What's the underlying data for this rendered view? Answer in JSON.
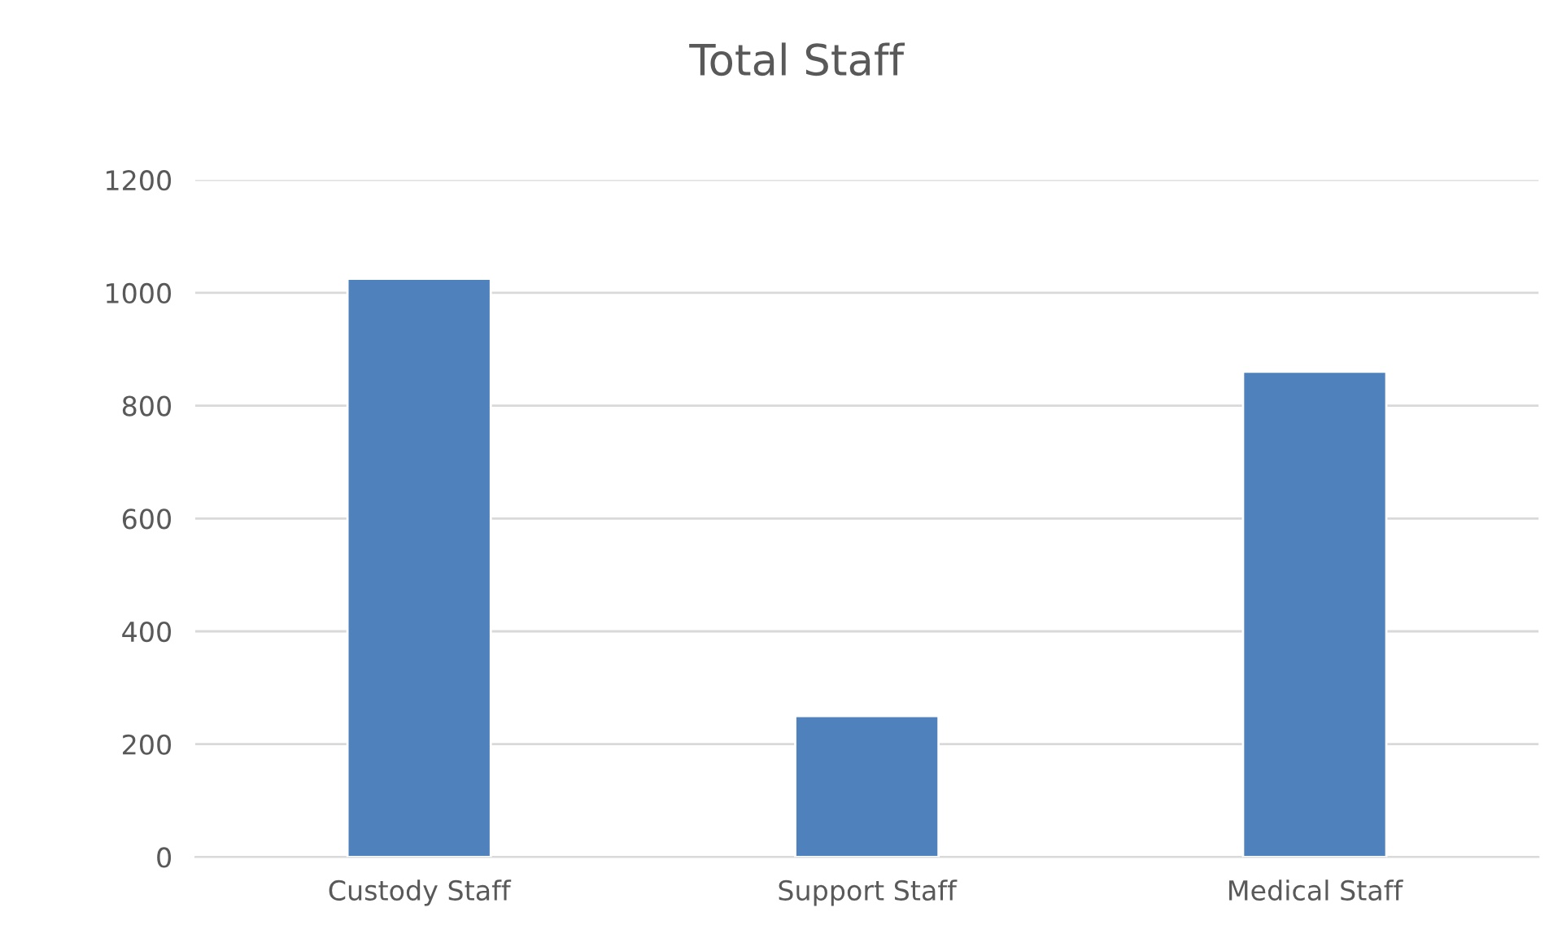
{
  "chart_data": {
    "type": "bar",
    "title": "Total Staff",
    "categories": [
      "Custody Staff",
      "Support Staff",
      "Medical Staff"
    ],
    "values": [
      1025,
      250,
      860
    ],
    "color": "#4f81bd",
    "ylim": [
      0,
      1200
    ],
    "yticks": [
      0,
      200,
      400,
      600,
      800,
      1000,
      1200
    ],
    "grid": "y"
  }
}
